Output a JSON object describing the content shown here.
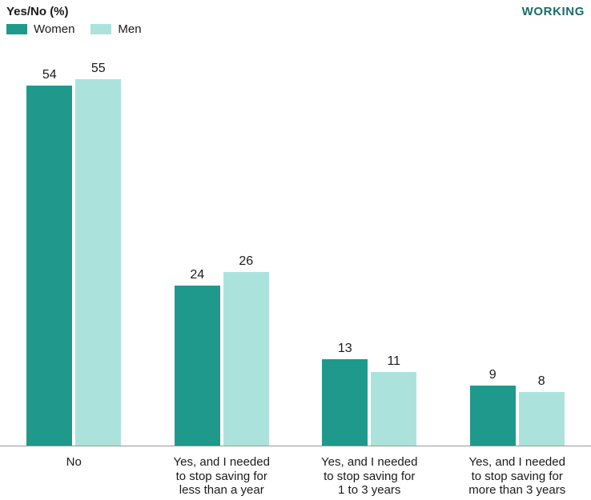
{
  "header": {
    "title": "Yes/No (%)",
    "tag": "WORKING"
  },
  "legend": {
    "items": [
      {
        "label": "Women",
        "color": "#1f998c"
      },
      {
        "label": "Men",
        "color": "#abe3dc"
      }
    ]
  },
  "colors": {
    "women_bar": "#1f998c",
    "men_bar": "#abe3dc",
    "tag_text": "#1a6b6b",
    "axis_line": "#999999",
    "text": "#1a1a1a"
  },
  "chart_data": {
    "type": "bar",
    "title": "Yes/No (%)",
    "categories": [
      "No",
      "Yes, and I needed to stop saving for less than a year",
      "Yes, and I needed to stop saving for 1 to 3 years",
      "Yes, and I needed to stop saving for more than 3 years"
    ],
    "categories_wrapped": [
      [
        "No"
      ],
      [
        "Yes, and I needed",
        "to stop saving for",
        "less than a year"
      ],
      [
        "Yes, and I needed",
        "to stop saving for",
        "1 to 3 years"
      ],
      [
        "Yes, and I needed",
        "to stop saving for",
        "more than 3 years"
      ]
    ],
    "series": [
      {
        "name": "Women",
        "values": [
          54,
          24,
          13,
          9
        ],
        "color": "#1f998c"
      },
      {
        "name": "Men",
        "values": [
          55,
          26,
          11,
          8
        ],
        "color": "#abe3dc"
      }
    ],
    "xlabel": "",
    "ylabel": "Yes/No (%)",
    "ylim": [
      0,
      58.5
    ],
    "grid": false,
    "legend_position": "top-left",
    "value_labels": true,
    "annotation": "WORKING"
  }
}
